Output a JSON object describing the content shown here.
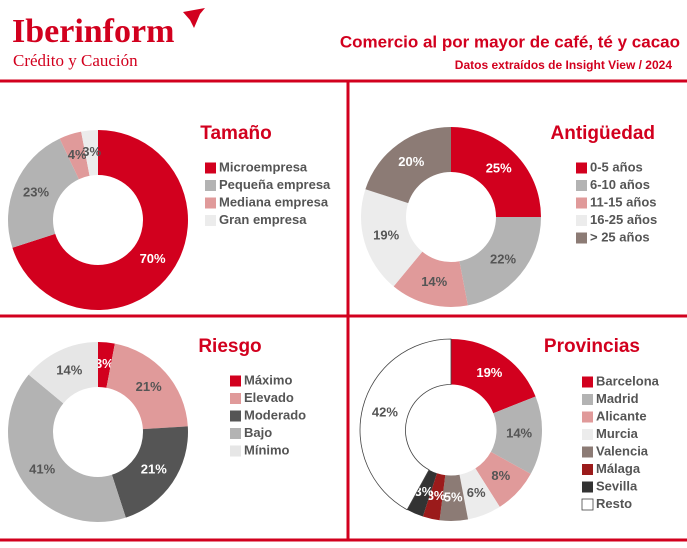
{
  "header": {
    "brand": "Iberinform",
    "brand_sub": "Crédito y Caución",
    "title": "Comercio al por mayor de café, té y cacao",
    "subtitle": "Datos extraídos de Insight View / 2024"
  },
  "chart_data": [
    {
      "type": "pie",
      "title": "Tamaño",
      "categories": [
        "Microempresa",
        "Pequeña empresa",
        "Mediana empresa",
        "Gran empresa"
      ],
      "values": [
        70,
        23,
        4,
        3
      ],
      "value_labels": [
        "70%",
        "23%",
        "4%",
        "3%"
      ],
      "colors": [
        "#d2001e",
        "#b3b3b3",
        "#e09a9a",
        "#ececec"
      ]
    },
    {
      "type": "pie",
      "title": "Antigüedad",
      "categories": [
        "0-5 años",
        "6-10 años",
        "11-15 años",
        "16-25 años",
        "> 25 años"
      ],
      "values": [
        25,
        22,
        14,
        19,
        20
      ],
      "value_labels": [
        "25%",
        "22%",
        "14%",
        "19%",
        "20%"
      ],
      "colors": [
        "#d2001e",
        "#b3b3b3",
        "#e09a9a",
        "#ececec",
        "#8c7b75"
      ]
    },
    {
      "type": "pie",
      "title": "Riesgo",
      "categories": [
        "Máximo",
        "Elevado",
        "Moderado",
        "Bajo",
        "Mínimo"
      ],
      "values": [
        3,
        21,
        21,
        41,
        14
      ],
      "value_labels": [
        "3%",
        "21%",
        "21%",
        "41%",
        "14%"
      ],
      "colors": [
        "#d2001e",
        "#e09a9a",
        "#555555",
        "#b3b3b3",
        "#e6e6e6"
      ]
    },
    {
      "type": "pie",
      "title": "Provincias",
      "categories": [
        "Barcelona",
        "Madrid",
        "Alicante",
        "Murcia",
        "Valencia",
        "Málaga",
        "Sevilla",
        "Resto"
      ],
      "values": [
        19,
        14,
        8,
        6,
        5,
        3,
        3,
        42
      ],
      "value_labels": [
        "19%",
        "14%",
        "8%",
        "6%",
        "5%",
        "3%",
        "3%",
        "42%"
      ],
      "colors": [
        "#d2001e",
        "#b3b3b3",
        "#e09a9a",
        "#ececec",
        "#8c7b75",
        "#9b1b1b",
        "#333333",
        "#ffffff"
      ]
    }
  ]
}
